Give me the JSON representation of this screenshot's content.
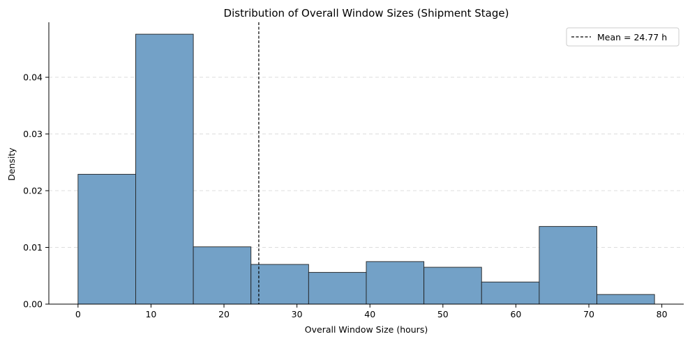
{
  "chart_data": {
    "type": "bar",
    "subtype": "histogram",
    "title": "Distribution of Overall Window Sizes (Shipment Stage)",
    "xlabel": "Overall Window Size (hours)",
    "ylabel": "Density",
    "xlim": [
      -4.0,
      83.0
    ],
    "ylim": [
      0,
      0.0497
    ],
    "xticks": [
      0,
      10,
      20,
      30,
      40,
      50,
      60,
      70,
      80
    ],
    "xtick_labels": [
      "0",
      "10",
      "20",
      "30",
      "40",
      "50",
      "60",
      "70",
      "80"
    ],
    "yticks": [
      0,
      0.01,
      0.02,
      0.03,
      0.04
    ],
    "ytick_labels": [
      "0.00",
      "0.01",
      "0.02",
      "0.03",
      "0.04"
    ],
    "grid": {
      "axis": "y",
      "style": "dashed"
    },
    "bins": [
      {
        "x0": 0.0,
        "x1": 7.9,
        "density": 0.0229
      },
      {
        "x0": 7.9,
        "x1": 15.8,
        "density": 0.0476
      },
      {
        "x0": 15.8,
        "x1": 23.7,
        "density": 0.0101
      },
      {
        "x0": 23.7,
        "x1": 31.6,
        "density": 0.007
      },
      {
        "x0": 31.6,
        "x1": 39.5,
        "density": 0.0056
      },
      {
        "x0": 39.5,
        "x1": 47.4,
        "density": 0.0075
      },
      {
        "x0": 47.4,
        "x1": 55.3,
        "density": 0.0065
      },
      {
        "x0": 55.3,
        "x1": 63.2,
        "density": 0.0039
      },
      {
        "x0": 63.2,
        "x1": 71.1,
        "density": 0.0137
      },
      {
        "x0": 71.1,
        "x1": 79.0,
        "density": 0.0017
      }
    ],
    "mean_line": {
      "x": 24.77,
      "label": "Mean = 24.77 h",
      "style": "dashed"
    },
    "legend": {
      "position": "top-right",
      "entries": [
        "Mean = 24.77 h"
      ]
    },
    "colors": {
      "bar_fill": "#73a1c7",
      "bar_edge": "#222222",
      "mean_line": "#000000",
      "grid": "#dddddd"
    }
  }
}
